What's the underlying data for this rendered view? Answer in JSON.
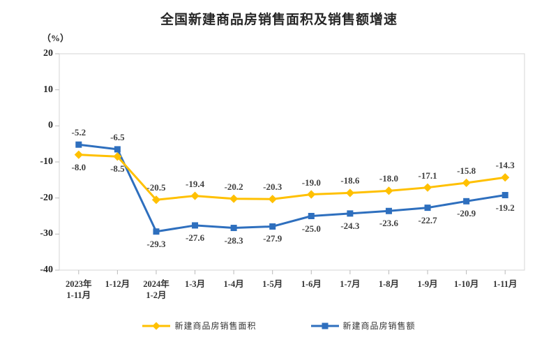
{
  "page": {
    "title": "全国新建商品房销售面积及销售额增速"
  },
  "chart_data": {
    "type": "line",
    "title": "全国新建商品房销售面积及销售额增速",
    "unit_label": "（%）",
    "xlabel": "",
    "ylabel": "（%）",
    "ylim": [
      -40,
      20
    ],
    "y_ticks": [
      20,
      10,
      0,
      -10,
      -20,
      -30,
      -40
    ],
    "grid": false,
    "legend_position": "bottom",
    "categories": [
      [
        "2023年",
        "1-11月"
      ],
      [
        "1-12月"
      ],
      [
        "2024年",
        "1-2月"
      ],
      [
        "1-3月"
      ],
      [
        "1-4月"
      ],
      [
        "1-5月"
      ],
      [
        "1-6月"
      ],
      [
        "1-7月"
      ],
      [
        "1-8月"
      ],
      [
        "1-9月"
      ],
      [
        "1-10月"
      ],
      [
        "1-11月"
      ]
    ],
    "series": [
      {
        "name": "新建商品房销售面积",
        "color": "#FFC000",
        "marker": "diamond",
        "values": [
          -8.0,
          -8.5,
          -20.5,
          -19.4,
          -20.2,
          -20.3,
          -19.0,
          -18.6,
          -18.0,
          -17.1,
          -15.8,
          -14.3
        ],
        "label_side": [
          "below",
          "below",
          "above",
          "above",
          "above",
          "above",
          "above",
          "above",
          "above",
          "above",
          "above",
          "above"
        ]
      },
      {
        "name": "新建商品房销售额",
        "color": "#2E6FBE",
        "marker": "square",
        "values": [
          -5.2,
          -6.5,
          -29.3,
          -27.6,
          -28.3,
          -27.9,
          -25.0,
          -24.3,
          -23.6,
          -22.7,
          -20.9,
          -19.2
        ],
        "label_side": [
          "above",
          "above",
          "below",
          "below",
          "below",
          "below",
          "below",
          "below",
          "below",
          "below",
          "below",
          "below"
        ]
      }
    ]
  }
}
